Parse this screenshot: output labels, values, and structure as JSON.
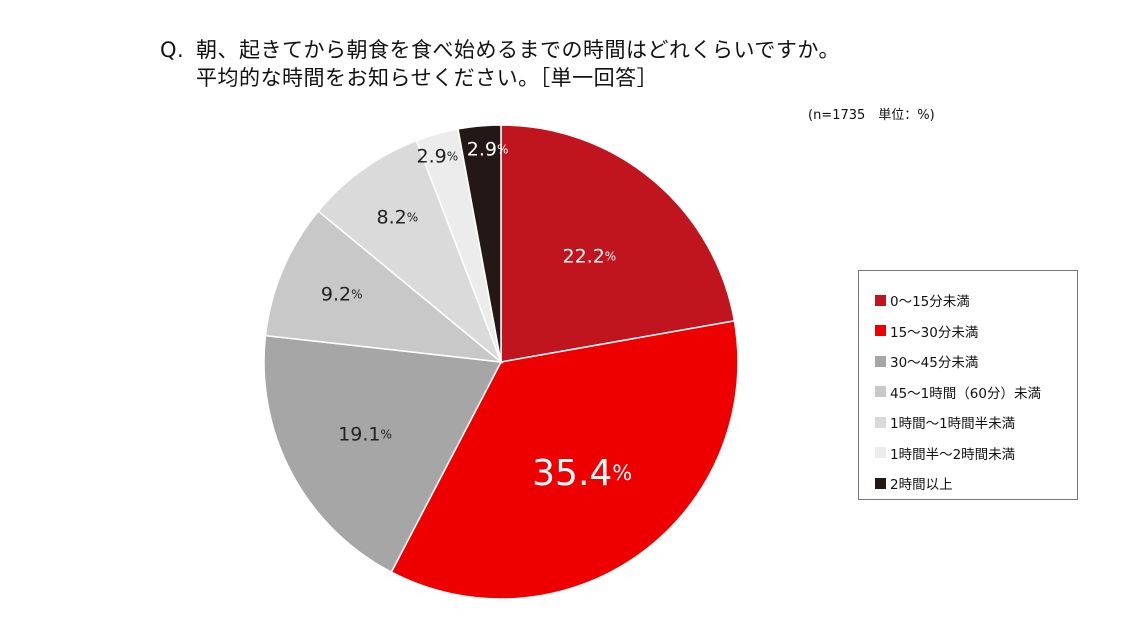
{
  "question": {
    "prefix": "Q.",
    "line1": "朝、起きてから朝食を食べ始めるまでの時間はどれくらいですか。",
    "line2": "平均的な時間をお知らせください。［単一回答］"
  },
  "note": "(n=1735　単位：%)",
  "chart_data": {
    "type": "pie",
    "title": "朝、起きてから朝食を食べ始めるまでの時間はどれくらいですか。平均的な時間をお知らせください。［単一回答］",
    "unit": "%",
    "n": 1735,
    "start_angle": "12 o'clock",
    "direction": "clockwise",
    "legend_position": "right",
    "slices": [
      {
        "label": "0～15分未満",
        "value": 22.2,
        "display": "22.2",
        "color": "#c0141e",
        "text_color": "#ffffff"
      },
      {
        "label": "15～30分未満",
        "value": 35.4,
        "display": "35.4",
        "color": "#ee0000",
        "text_color": "#ffffff"
      },
      {
        "label": "30～45分未満",
        "value": 19.1,
        "display": "19.1",
        "color": "#a6a6a6",
        "text_color": "#222222"
      },
      {
        "label": "45～1時間（60分）未満",
        "value": 9.2,
        "display": "9.2",
        "color": "#c8c8c8",
        "text_color": "#222222"
      },
      {
        "label": "1時間～1時間半未満",
        "value": 8.2,
        "display": "8.2",
        "color": "#dadada",
        "text_color": "#222222"
      },
      {
        "label": "1時間半～2時間未満",
        "value": 2.9,
        "display": "2.9",
        "color": "#ececec",
        "text_color": "#222222"
      },
      {
        "label": "2時間以上",
        "value": 2.9,
        "display": "2.9",
        "color": "#231815",
        "text_color": "#ffffff"
      }
    ]
  }
}
